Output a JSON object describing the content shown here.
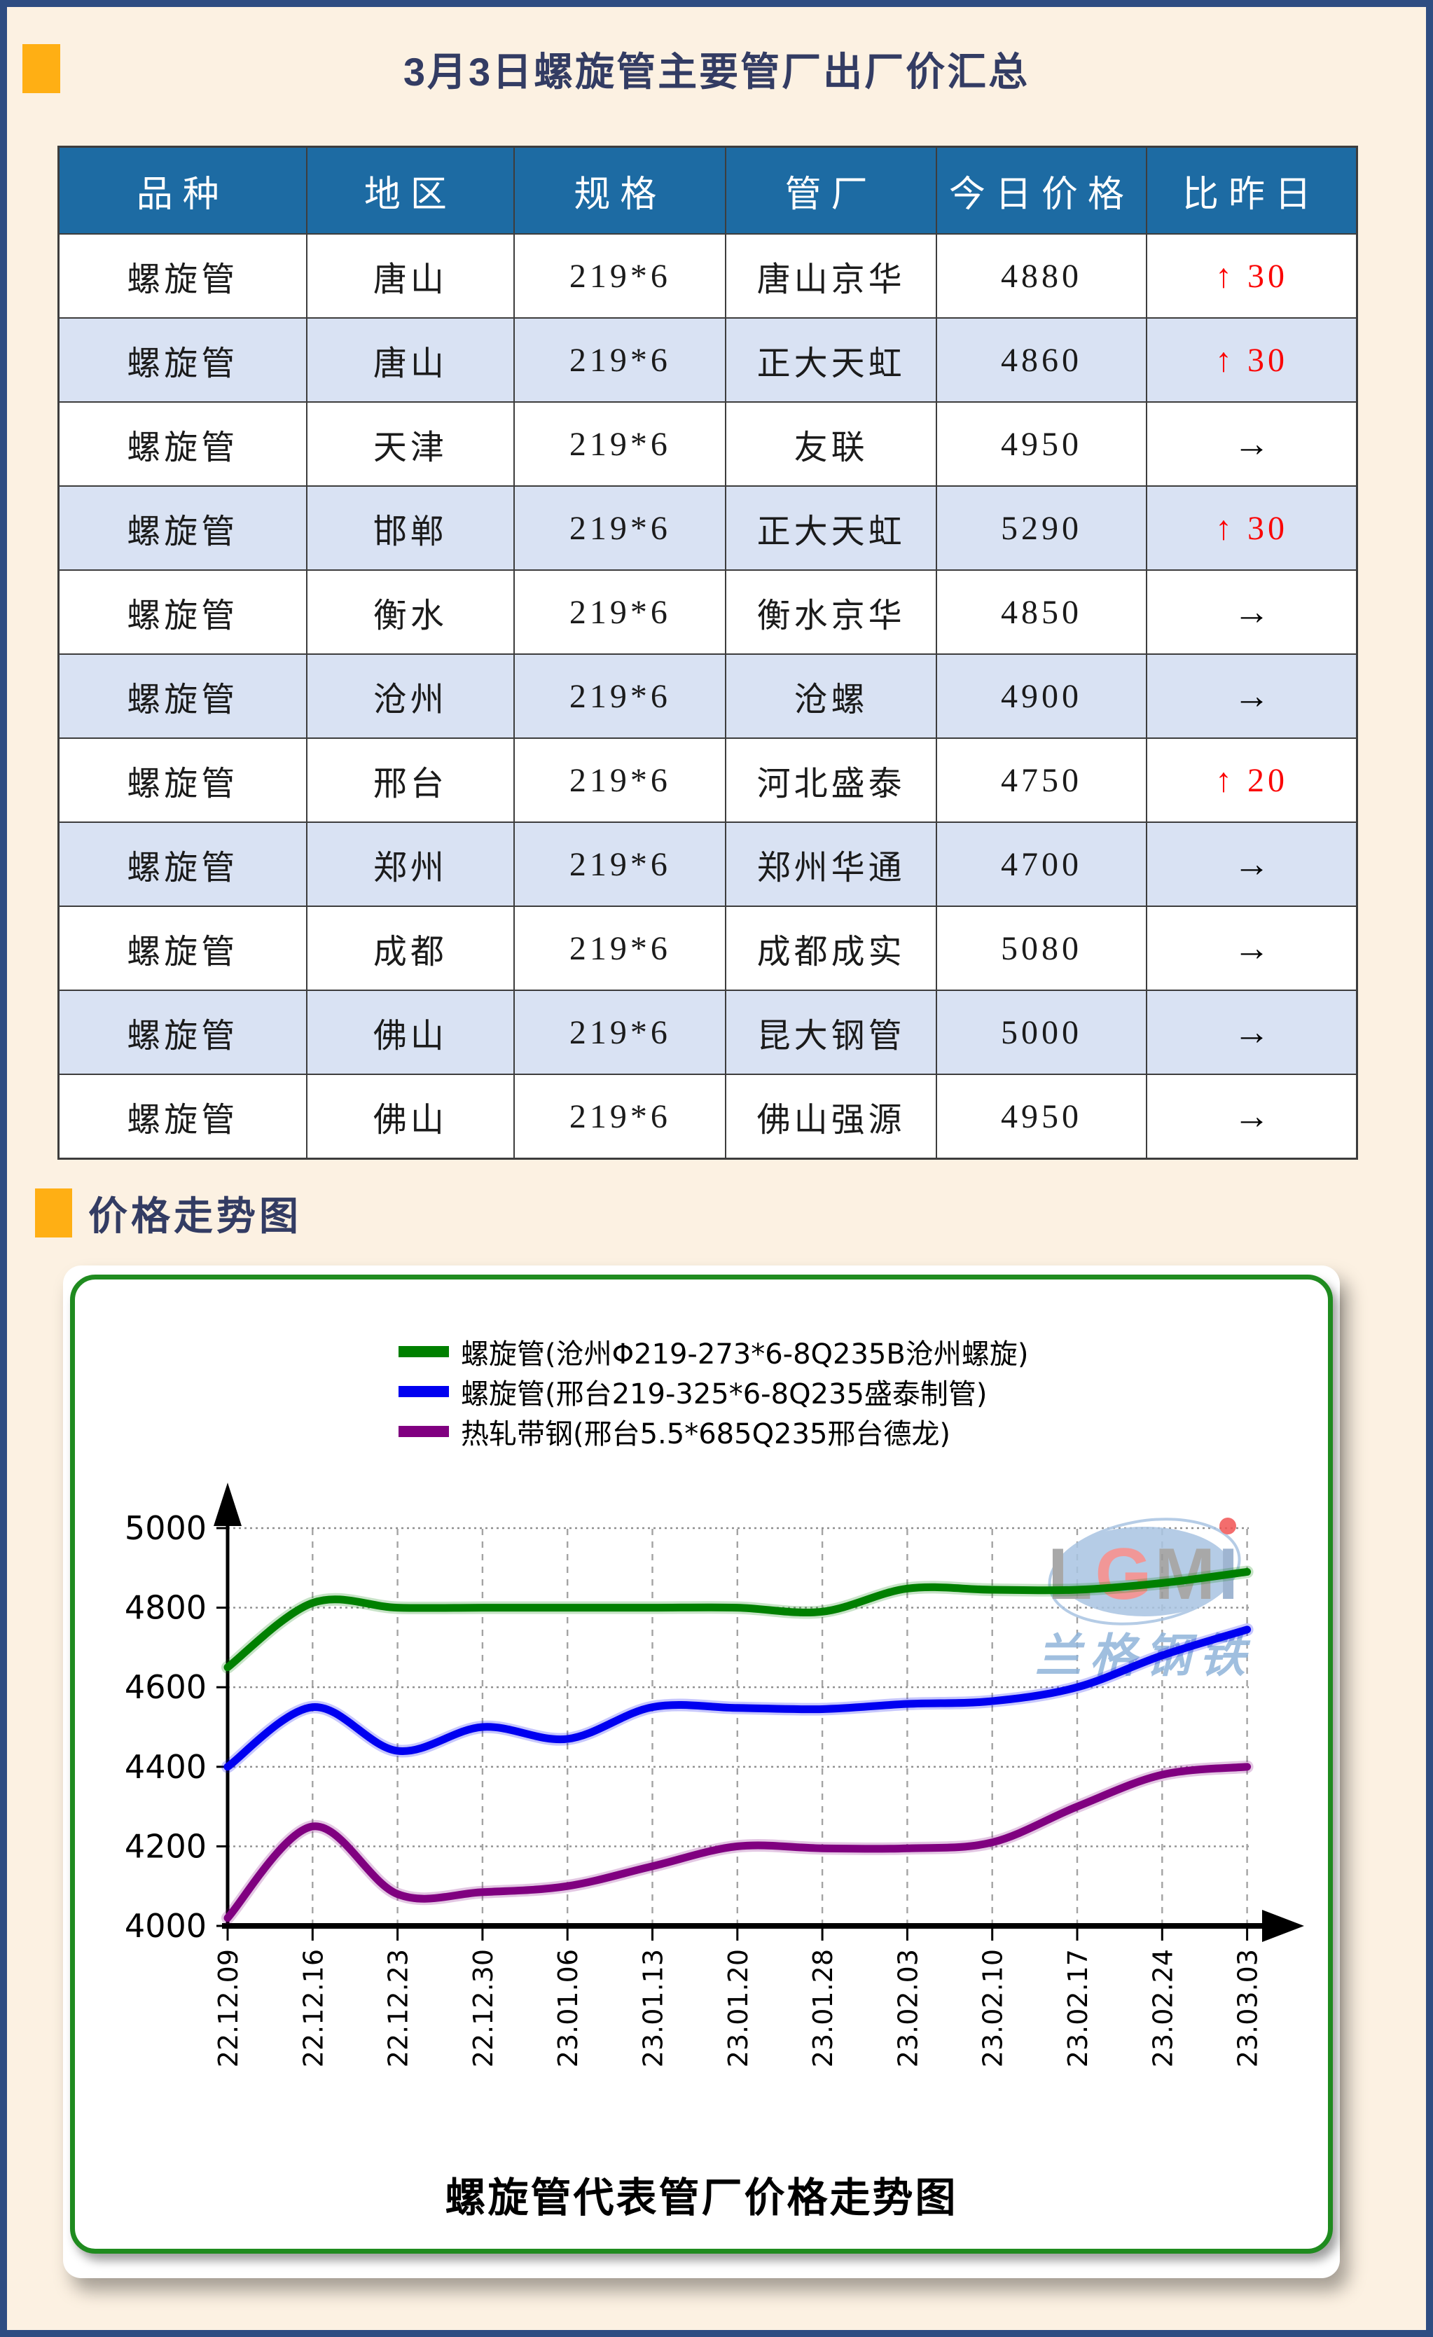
{
  "page": {
    "background": "#fcf1e2",
    "frame_color": "#2e4d82",
    "accent_color": "#ffaf14",
    "heading_color": "#333c63"
  },
  "price_summary": {
    "title": "3月3日螺旋管主要管厂出厂价汇总",
    "table": {
      "header_bg": "#1d6ba3",
      "alt_row_bg": "#d9e2f3",
      "up_color": "#fb0505",
      "up_symbol": "↑",
      "flat_symbol": "→",
      "columns": [
        "品种",
        "地区",
        "规格",
        "管厂",
        "今日价格",
        "比昨日"
      ],
      "rows": [
        {
          "variety": "螺旋管",
          "region": "唐山",
          "spec": "219*6",
          "mill": "唐山京华",
          "price": "4880",
          "change": "30",
          "direction": "up"
        },
        {
          "variety": "螺旋管",
          "region": "唐山",
          "spec": "219*6",
          "mill": "正大天虹",
          "price": "4860",
          "change": "30",
          "direction": "up"
        },
        {
          "variety": "螺旋管",
          "region": "天津",
          "spec": "219*6",
          "mill": "友联",
          "price": "4950",
          "change": "",
          "direction": "flat"
        },
        {
          "variety": "螺旋管",
          "region": "邯郸",
          "spec": "219*6",
          "mill": "正大天虹",
          "price": "5290",
          "change": "30",
          "direction": "up"
        },
        {
          "variety": "螺旋管",
          "region": "衡水",
          "spec": "219*6",
          "mill": "衡水京华",
          "price": "4850",
          "change": "",
          "direction": "flat"
        },
        {
          "variety": "螺旋管",
          "region": "沧州",
          "spec": "219*6",
          "mill": "沧螺",
          "price": "4900",
          "change": "",
          "direction": "flat"
        },
        {
          "variety": "螺旋管",
          "region": "邢台",
          "spec": "219*6",
          "mill": "河北盛泰",
          "price": "4750",
          "change": "20",
          "direction": "up"
        },
        {
          "variety": "螺旋管",
          "region": "郑州",
          "spec": "219*6",
          "mill": "郑州华通",
          "price": "4700",
          "change": "",
          "direction": "flat"
        },
        {
          "variety": "螺旋管",
          "region": "成都",
          "spec": "219*6",
          "mill": "成都成实",
          "price": "5080",
          "change": "",
          "direction": "flat"
        },
        {
          "variety": "螺旋管",
          "region": "佛山",
          "spec": "219*6",
          "mill": "昆大钢管",
          "price": "5000",
          "change": "",
          "direction": "flat"
        },
        {
          "variety": "螺旋管",
          "region": "佛山",
          "spec": "219*6",
          "mill": "佛山强源",
          "price": "4950",
          "change": "",
          "direction": "flat"
        }
      ]
    }
  },
  "trend_section": {
    "title": "价格走势图"
  },
  "chart_data": {
    "type": "line",
    "title": "螺旋管代表管厂价格走势图",
    "x_labels": [
      "22.12.09",
      "22.12.16",
      "22.12.23",
      "22.12.30",
      "23.01.06",
      "23.01.13",
      "23.01.20",
      "23.01.28",
      "23.02.03",
      "23.02.10",
      "23.02.17",
      "23.02.24",
      "23.03.03"
    ],
    "ylim": [
      4000,
      5000
    ],
    "ytick_step": 200,
    "grid": true,
    "legend_position": "top",
    "series": [
      {
        "name": "螺旋管(沧州Φ219-273*6-8Q235B沧州螺旋)",
        "color": "#008000",
        "values": [
          4650,
          4812,
          4800,
          4800,
          4800,
          4800,
          4800,
          4790,
          4848,
          4845,
          4845,
          4862,
          4890
        ]
      },
      {
        "name": "螺旋管(邢台219-325*6-8Q235盛泰制管)",
        "color": "#0000f0",
        "values": [
          4400,
          4550,
          4440,
          4500,
          4470,
          4550,
          4548,
          4545,
          4558,
          4565,
          4600,
          4680,
          4745
        ]
      },
      {
        "name": "热轧带钢(邢台5.5*685Q235邢台德龙)",
        "color": "#800080",
        "values": [
          4020,
          4250,
          4080,
          4085,
          4100,
          4150,
          4200,
          4195,
          4195,
          4210,
          4300,
          4380,
          4400
        ]
      }
    ],
    "watermark": {
      "logo": "LGMI",
      "caption": "兰格钢铁"
    }
  }
}
